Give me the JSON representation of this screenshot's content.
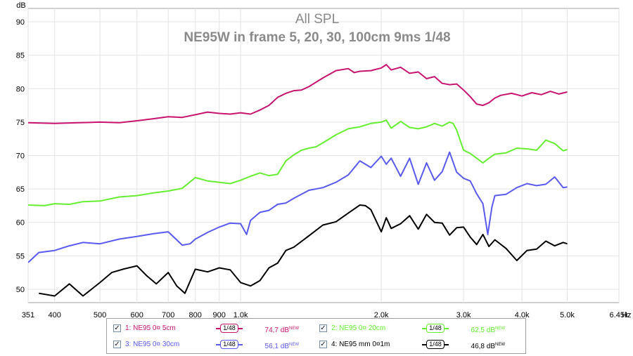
{
  "chart_data": {
    "type": "line",
    "title": "All SPL",
    "subtitle": "NE95W in frame 5, 20, 30, 100cm 9ms 1/48",
    "ylabel": "dB",
    "xlabel": "Hz",
    "x_scale": "log",
    "xlim": [
      351,
      6450
    ],
    "ylim": [
      48,
      92
    ],
    "x_ticks": [
      {
        "value": 351,
        "label": "351"
      },
      {
        "value": 400,
        "label": "400"
      },
      {
        "value": 500,
        "label": "500"
      },
      {
        "value": 600,
        "label": "600"
      },
      {
        "value": 700,
        "label": "700"
      },
      {
        "value": 800,
        "label": "800"
      },
      {
        "value": 900,
        "label": "900"
      },
      {
        "value": 1000,
        "label": "1,0k"
      },
      {
        "value": 2000,
        "label": "2,0k"
      },
      {
        "value": 3000,
        "label": "3,0k"
      },
      {
        "value": 4000,
        "label": "4,0k"
      },
      {
        "value": 5000,
        "label": "5,0k"
      },
      {
        "value": 6450,
        "label": "6,45k"
      }
    ],
    "y_ticks": [
      {
        "value": 90,
        "label": "90"
      },
      {
        "value": 85,
        "label": "85"
      },
      {
        "value": 80,
        "label": "80"
      },
      {
        "value": 75,
        "label": "75"
      },
      {
        "value": 70,
        "label": "70"
      },
      {
        "value": 65,
        "label": "65"
      },
      {
        "value": 60,
        "label": "60"
      },
      {
        "value": 55,
        "label": "55"
      },
      {
        "value": 50,
        "label": "50"
      }
    ],
    "grid": true,
    "legend_position": "bottom",
    "series": [
      {
        "name": "1: NE95 0¤ 5cm",
        "color": "#c8146e",
        "smoothing": "1/48",
        "value": "74,7 dB",
        "badge": "NEW",
        "x": [
          351,
          400,
          450,
          500,
          550,
          600,
          650,
          700,
          750,
          800,
          850,
          900,
          950,
          1000,
          1050,
          1100,
          1150,
          1200,
          1250,
          1300,
          1350,
          1400,
          1500,
          1600,
          1700,
          1750,
          1800,
          1900,
          2000,
          2050,
          2100,
          2200,
          2300,
          2400,
          2500,
          2600,
          2700,
          2800,
          2900,
          3000,
          3100,
          3200,
          3300,
          3400,
          3500,
          3600,
          3800,
          4000,
          4200,
          4400,
          4600,
          4800,
          5000
        ],
        "y": [
          74.9,
          74.8,
          74.9,
          75.0,
          74.9,
          75.2,
          75.5,
          75.8,
          75.7,
          76.1,
          76.5,
          76.3,
          76.2,
          76.4,
          76.2,
          76.8,
          77.5,
          78.7,
          79.3,
          79.7,
          79.8,
          80.3,
          81.6,
          82.7,
          83.0,
          82.4,
          82.6,
          82.7,
          83.1,
          83.6,
          82.8,
          83.2,
          82.3,
          82.5,
          81.5,
          81.8,
          80.8,
          80.6,
          80.7,
          79.8,
          78.8,
          77.7,
          77.5,
          77.9,
          78.6,
          79.0,
          79.3,
          78.9,
          79.4,
          79.1,
          79.6,
          79.2,
          79.5
        ]
      },
      {
        "name": "2: NE95 0¤ 20cm",
        "color": "#66ee33",
        "smoothing": "1/48",
        "value": "62,5 dB",
        "badge": "NEW",
        "x": [
          351,
          380,
          400,
          430,
          460,
          500,
          550,
          600,
          650,
          700,
          750,
          800,
          850,
          900,
          950,
          1000,
          1050,
          1100,
          1150,
          1200,
          1250,
          1300,
          1350,
          1400,
          1450,
          1500,
          1600,
          1700,
          1800,
          1900,
          2000,
          2050,
          2100,
          2200,
          2300,
          2400,
          2500,
          2600,
          2700,
          2800,
          2850,
          2900,
          3000,
          3100,
          3200,
          3300,
          3400,
          3500,
          3700,
          3900,
          4100,
          4300,
          4500,
          4700,
          4900,
          5000
        ],
        "y": [
          62.6,
          62.5,
          62.8,
          62.7,
          63.1,
          63.2,
          63.8,
          64.0,
          64.4,
          64.7,
          65.1,
          66.7,
          66.2,
          66.0,
          65.8,
          66.3,
          66.9,
          67.4,
          67.0,
          67.2,
          69.2,
          70.1,
          70.8,
          71.1,
          71.3,
          71.9,
          73.1,
          74.0,
          74.3,
          74.8,
          75.0,
          75.3,
          74.1,
          75.1,
          74.2,
          74.0,
          74.3,
          74.8,
          74.4,
          75.0,
          74.8,
          73.8,
          70.8,
          70.3,
          69.6,
          68.9,
          69.6,
          70.2,
          70.4,
          71.1,
          71.0,
          70.8,
          72.3,
          71.8,
          70.7,
          70.9
        ]
      },
      {
        "name": "3: NE95 0¤ 30cm",
        "color": "#5a5aee",
        "smoothing": "1/48",
        "value": "56,1 dB",
        "badge": "NEW",
        "x": [
          351,
          370,
          400,
          430,
          460,
          500,
          550,
          600,
          650,
          700,
          750,
          780,
          800,
          850,
          900,
          950,
          1000,
          1030,
          1050,
          1100,
          1150,
          1200,
          1250,
          1300,
          1400,
          1500,
          1600,
          1700,
          1800,
          1900,
          2000,
          2050,
          2100,
          2200,
          2300,
          2400,
          2500,
          2600,
          2700,
          2800,
          2900,
          3000,
          3100,
          3200,
          3300,
          3380,
          3450,
          3500,
          3700,
          3900,
          4100,
          4300,
          4500,
          4700,
          4900,
          5000
        ],
        "y": [
          54.0,
          55.5,
          55.8,
          56.5,
          57.0,
          56.8,
          57.5,
          57.9,
          58.3,
          58.6,
          56.6,
          56.8,
          57.5,
          58.5,
          59.3,
          59.9,
          59.8,
          58.2,
          60.3,
          61.5,
          61.8,
          62.7,
          62.9,
          63.6,
          64.8,
          65.2,
          66.0,
          67.1,
          69.2,
          68.2,
          69.9,
          68.7,
          69.6,
          66.9,
          69.6,
          65.7,
          68.9,
          66.3,
          67.6,
          70.5,
          67.5,
          66.6,
          66.2,
          64.3,
          62.8,
          58.2,
          62.3,
          64.0,
          64.2,
          65.2,
          65.8,
          65.5,
          65.7,
          66.8,
          65.2,
          65.3
        ]
      },
      {
        "name": "4: NE95 mm 0¤1m",
        "color": "#000000",
        "smoothing": "1/48",
        "value": "46,8 dB",
        "badge": "NEW",
        "x": [
          370,
          400,
          430,
          460,
          500,
          530,
          560,
          600,
          630,
          660,
          700,
          730,
          760,
          800,
          850,
          900,
          950,
          1000,
          1050,
          1100,
          1150,
          1200,
          1250,
          1300,
          1400,
          1500,
          1600,
          1700,
          1800,
          1850,
          1900,
          2000,
          2050,
          2100,
          2200,
          2300,
          2400,
          2500,
          2600,
          2700,
          2800,
          2900,
          3000,
          3100,
          3200,
          3300,
          3400,
          3500,
          3700,
          3900,
          4100,
          4300,
          4500,
          4700,
          4900,
          5000
        ],
        "y": [
          49.4,
          49.0,
          50.8,
          49.0,
          51.0,
          52.5,
          53.0,
          53.5,
          52.0,
          50.8,
          52.5,
          50.5,
          49.4,
          53.0,
          52.6,
          53.2,
          52.9,
          51.0,
          50.5,
          51.3,
          53.2,
          53.9,
          55.8,
          56.3,
          58.0,
          59.6,
          60.1,
          61.4,
          62.6,
          62.5,
          61.9,
          58.6,
          60.7,
          59.1,
          59.8,
          61.0,
          59.0,
          61.2,
          60.0,
          59.9,
          58.1,
          59.2,
          59.3,
          57.8,
          56.7,
          58.2,
          56.4,
          57.4,
          56.1,
          54.3,
          55.8,
          56.0,
          57.2,
          56.5,
          57.0,
          56.8
        ]
      }
    ]
  }
}
